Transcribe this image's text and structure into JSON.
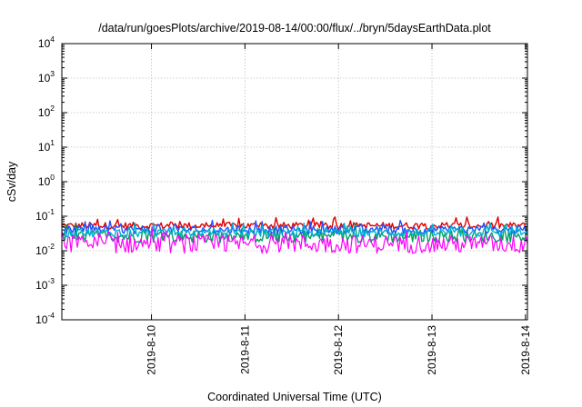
{
  "chart_data": {
    "type": "line",
    "title": "/data/run/goesPlots/archive/2019-08-14/00:00/flux/../bryn/5daysEarthData.plot",
    "xlabel": "Coordinated Universal Time (UTC)",
    "ylabel": "cSv/day",
    "xlim": [
      "2019-08-09 01:00",
      "2019-08-14 00:30"
    ],
    "ylim": [
      0.0001,
      10000
    ],
    "yscale": "log",
    "grid": true,
    "legend": "none",
    "x_tick_labels": [
      "2019-8-10",
      "2019-8-11",
      "2019-8-12",
      "2019-8-13",
      "2019-8-14"
    ],
    "x_tick_values": [
      "2019-08-10",
      "2019-08-11",
      "2019-08-12",
      "2019-08-13",
      "2019-08-14"
    ],
    "y_ticks": [
      {
        "base": "10",
        "exp": "-4",
        "value": 0.0001
      },
      {
        "base": "10",
        "exp": "-3",
        "value": 0.001
      },
      {
        "base": "10",
        "exp": "-2",
        "value": 0.01
      },
      {
        "base": "10",
        "exp": "-1",
        "value": 0.1
      },
      {
        "base": "10",
        "exp": "0",
        "value": 1
      },
      {
        "base": "10",
        "exp": "1",
        "value": 10
      },
      {
        "base": "10",
        "exp": "2",
        "value": 100
      },
      {
        "base": "10",
        "exp": "3",
        "value": 1000
      },
      {
        "base": "10",
        "exp": "4",
        "value": 10000
      }
    ],
    "series_colors": [
      "#e00000",
      "#00a060",
      "#2050ff",
      "#00b0d0",
      "#ff00ff"
    ],
    "series": [
      {
        "color": "#e00000",
        "range": [
          0.035,
          0.075
        ]
      },
      {
        "color": "#00a060",
        "range": [
          0.012,
          0.05
        ]
      },
      {
        "color": "#2050ff",
        "range": [
          0.025,
          0.06
        ]
      },
      {
        "color": "#00b0d0",
        "range": [
          0.02,
          0.05
        ]
      },
      {
        "color": "#ff00ff",
        "range": [
          0.005,
          0.04
        ]
      }
    ]
  }
}
